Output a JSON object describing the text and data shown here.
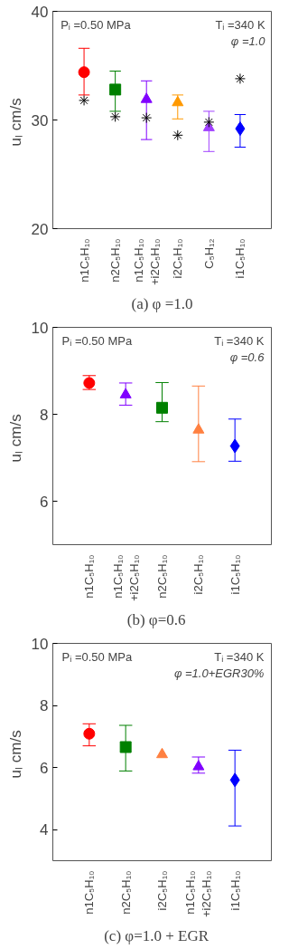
{
  "chart_data": [
    {
      "type": "scatter",
      "title": "(a) φ =1.0",
      "ylabel": "uₗ  cm/s",
      "annotations": [
        "Pᵢ =0.50 MPa",
        "Tᵢ =340 K",
        "φ =1.0"
      ],
      "categories": [
        "n1C₅H₁₀",
        "n2C₅H₁₀",
        "n1C₅H₁₀\n+i2C₅H₁₀",
        "i2C₅H₁₀",
        "C₅H₁₂",
        "i1C₅H₁₀"
      ],
      "ylim": [
        20,
        40
      ],
      "yticks": [
        20,
        30,
        40
      ],
      "series": [
        {
          "color": "#ff0000",
          "marker": "circle",
          "values": [
            34.4,
            null,
            null,
            null,
            null,
            null
          ],
          "errors": [
            [
              32.3,
              36.6
            ],
            null,
            null,
            null,
            null,
            null
          ]
        },
        {
          "color": "#008000",
          "marker": "square",
          "values": [
            null,
            32.8,
            null,
            null,
            null,
            null
          ],
          "errors": [
            null,
            [
              30.8,
              34.5
            ],
            null,
            null,
            null,
            null
          ]
        },
        {
          "color": "#8000ff",
          "marker": "triangle",
          "values": [
            null,
            null,
            31.9,
            null,
            null,
            null
          ],
          "errors": [
            null,
            null,
            [
              28.2,
              33.6
            ],
            null,
            null,
            null
          ]
        },
        {
          "color": "#ff9900",
          "marker": "triangle",
          "values": [
            null,
            null,
            null,
            31.6,
            null,
            null
          ],
          "errors": [
            null,
            null,
            null,
            [
              30.1,
              32.3
            ],
            null,
            null
          ]
        },
        {
          "color": "#a040ff",
          "marker": "triangle",
          "values": [
            null,
            null,
            null,
            null,
            29.3,
            null
          ],
          "errors": [
            null,
            null,
            null,
            null,
            [
              27.1,
              30.8
            ],
            null
          ]
        },
        {
          "color": "#0000ff",
          "marker": "diamond",
          "values": [
            null,
            null,
            null,
            null,
            null,
            29.2
          ],
          "errors": [
            null,
            null,
            null,
            null,
            null,
            [
              27.5,
              30.5
            ]
          ]
        },
        {
          "color": "#000000",
          "marker": "cross",
          "values": [
            31.8,
            30.3,
            30.2,
            28.6,
            29.8,
            33.8
          ]
        }
      ]
    },
    {
      "type": "scatter",
      "title": "(b)    φ=0.6",
      "ylabel": "uₗ  cm/s",
      "annotations": [
        "Pᵢ =0.50 MPa",
        "Tᵢ =340 K",
        "φ =0.6"
      ],
      "categories": [
        "n1C₅H₁₀",
        "n1C₅H₁₀\n+i2C₅H₁₀",
        "n2C₅H₁₀",
        "i2C₅H₁₀",
        "i1C₅H₁₀"
      ],
      "ylim": [
        5,
        10
      ],
      "yticks": [
        6,
        8,
        10
      ],
      "series": [
        {
          "color": "#ff0000",
          "marker": "circle",
          "values": [
            8.72,
            null,
            null,
            null,
            null
          ],
          "errors": [
            [
              8.57,
              8.89
            ],
            null,
            null,
            null,
            null
          ]
        },
        {
          "color": "#8000ff",
          "marker": "triangle",
          "values": [
            null,
            8.45,
            null,
            null,
            null
          ],
          "errors": [
            null,
            [
              8.21,
              8.72
            ],
            null,
            null,
            null
          ]
        },
        {
          "color": "#008000",
          "marker": "square",
          "values": [
            null,
            null,
            8.15,
            null,
            null
          ],
          "errors": [
            null,
            null,
            [
              7.83,
              8.73
            ],
            null,
            null
          ]
        },
        {
          "color": "#ff8040",
          "marker": "triangle",
          "values": [
            null,
            null,
            null,
            7.64,
            null
          ],
          "errors": [
            null,
            null,
            null,
            [
              6.91,
              8.65
            ],
            null
          ]
        },
        {
          "color": "#0000ff",
          "marker": "diamond",
          "values": [
            null,
            null,
            null,
            null,
            7.27
          ],
          "errors": [
            null,
            null,
            null,
            null,
            [
              6.92,
              7.89
            ]
          ]
        }
      ]
    },
    {
      "type": "scatter",
      "title": "(c)    φ=1.0 + EGR",
      "ylabel": "uₗ  cm/s",
      "annotations": [
        "Pᵢ =0.50 MPa",
        "Tᵢ =340 K",
        "φ =1.0+EGR30%"
      ],
      "categories": [
        "n1C₅H₁₀",
        "n2C₅H₁₀",
        "i2C₅H₁₀",
        "n1C₅H₁₀\n+i2C₅H₁₀",
        "i1C₅H₁₀"
      ],
      "ylim": [
        3,
        10
      ],
      "yticks": [
        4,
        6,
        8,
        10
      ],
      "series": [
        {
          "color": "#ff0000",
          "marker": "circle",
          "values": [
            7.09,
            null,
            null,
            null,
            null
          ],
          "errors": [
            [
              6.7,
              7.41
            ],
            null,
            null,
            null,
            null
          ]
        },
        {
          "color": "#008000",
          "marker": "square",
          "values": [
            null,
            6.66,
            null,
            null,
            null
          ],
          "errors": [
            null,
            [
              5.89,
              7.36
            ],
            null,
            null,
            null
          ]
        },
        {
          "color": "#ff8040",
          "marker": "triangle",
          "values": [
            null,
            null,
            6.42,
            null,
            null
          ]
        },
        {
          "color": "#8000ff",
          "marker": "triangle",
          "values": [
            null,
            null,
            null,
            6.03,
            null
          ],
          "errors": [
            null,
            null,
            null,
            [
              5.82,
              6.34
            ],
            null
          ]
        },
        {
          "color": "#0000ff",
          "marker": "diamond",
          "values": [
            null,
            null,
            null,
            null,
            5.6
          ],
          "errors": [
            null,
            null,
            null,
            null,
            [
              4.12,
              6.56
            ]
          ]
        }
      ]
    }
  ]
}
